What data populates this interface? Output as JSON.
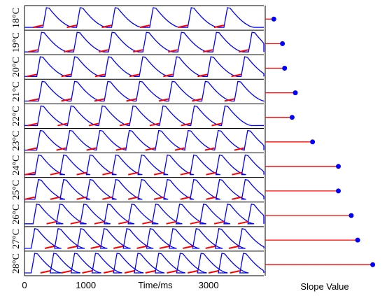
{
  "chart_data": [
    {
      "type": "line",
      "xlabel": "Time/ms",
      "xticks": [
        "0",
        "1000",
        "3000"
      ],
      "xtick_values": [
        0,
        1000,
        3000
      ],
      "xlim": [
        0,
        3900
      ],
      "rows": [
        {
          "label": "18°C",
          "beat_onsets_ms": [
            300,
            850,
            1420,
            2040,
            2660,
            3250
          ]
        },
        {
          "label": "19°C",
          "beat_onsets_ms": [
            220,
            800,
            1370,
            1930,
            2500,
            3070,
            3650
          ]
        },
        {
          "label": "20°C",
          "beat_onsets_ms": [
            200,
            760,
            1310,
            1870,
            2420,
            2980,
            3530
          ]
        },
        {
          "label": "21°C",
          "beat_onsets_ms": [
            230,
            760,
            1300,
            1820,
            2350,
            2890,
            3420
          ]
        },
        {
          "label": "22°C",
          "beat_onsets_ms": [
            210,
            700,
            1210,
            1710,
            2200,
            2710,
            3210
          ]
        },
        {
          "label": "23°C",
          "beat_onsets_ms": [
            200,
            680,
            1170,
            1650,
            2130,
            2610,
            3100,
            3580
          ]
        },
        {
          "label": "24°C",
          "beat_onsets_ms": [
            170,
            580,
            1010,
            1430,
            1850,
            2270,
            2700,
            3120,
            3540
          ]
        },
        {
          "label": "25°C",
          "beat_onsets_ms": [
            170,
            580,
            1010,
            1430,
            1850,
            2270,
            2700,
            3120,
            3540
          ]
        },
        {
          "label": "26°C",
          "beat_onsets_ms": [
            140,
            520,
            910,
            1300,
            1690,
            2080,
            2470,
            2860,
            3250,
            3640
          ]
        },
        {
          "label": "27°C",
          "beat_onsets_ms": [
            110,
            490,
            860,
            1240,
            1610,
            1990,
            2360,
            2740,
            3110,
            3490
          ]
        },
        {
          "label": "28°C",
          "beat_onsets_ms": [
            110,
            420,
            760,
            1100,
            1450,
            1790,
            2130,
            2480,
            2820,
            3160,
            3510
          ]
        }
      ]
    },
    {
      "type": "scatter",
      "style": "lollipop",
      "xlabel": "Slope Value",
      "categories": [
        "18°C",
        "19°C",
        "20°C",
        "21°C",
        "22°C",
        "23°C",
        "24°C",
        "25°C",
        "26°C",
        "27°C",
        "28°C"
      ],
      "values": [
        0.08,
        0.16,
        0.18,
        0.28,
        0.25,
        0.44,
        0.68,
        0.68,
        0.8,
        0.86,
        1.0
      ],
      "xlim": [
        0,
        1.1
      ],
      "colors": {
        "stem": "#ff0000",
        "marker": "#0000ff"
      }
    }
  ],
  "colors": {
    "trace": "#0000ff",
    "slope_segment": "#ff0000",
    "axis": "#000000"
  }
}
